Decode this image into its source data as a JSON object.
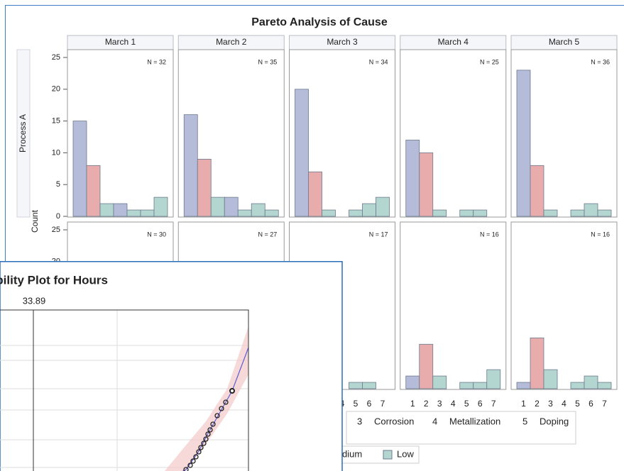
{
  "chart_data": [
    {
      "type": "bar",
      "title": "Pareto Analysis of Cause",
      "ylabel": "Count",
      "columns": [
        "March 1",
        "March 2",
        "March 3",
        "March 4",
        "March 5"
      ],
      "rows": [
        "Process A"
      ],
      "categories": [
        "1",
        "2",
        "3",
        "4",
        "5",
        "6",
        "7"
      ],
      "bar_colors": [
        "#b4bcd9",
        "#e8acac",
        "#b4d6d0",
        "#b4bcd9",
        "#b4d6d0",
        "#b4d6d0",
        "#b4d6d0"
      ],
      "ylim": [
        0,
        25
      ],
      "yticks": [
        0,
        5,
        10,
        15,
        20,
        25
      ],
      "panels": [
        [
          {
            "n_label": "N = 32",
            "values": [
              15,
              8,
              2,
              2,
              1,
              1,
              3
            ]
          },
          {
            "n_label": "N = 35",
            "values": [
              16,
              9,
              3,
              3,
              1,
              2,
              1
            ]
          },
          {
            "n_label": "N = 34",
            "values": [
              20,
              7,
              1,
              0,
              1,
              2,
              3
            ]
          },
          {
            "n_label": "N = 25",
            "values": [
              12,
              10,
              1,
              0,
              1,
              1,
              0
            ]
          },
          {
            "n_label": "N = 36",
            "values": [
              23,
              8,
              1,
              0,
              1,
              2,
              1
            ]
          }
        ],
        [
          {
            "n_label": "N = 30",
            "values": [
              null,
              null,
              null,
              null,
              null,
              null,
              null
            ]
          },
          {
            "n_label": "N = 27",
            "values": [
              null,
              null,
              null,
              null,
              null,
              null,
              null
            ]
          },
          {
            "n_label": "N = 17",
            "values": [
              null,
              null,
              null,
              0,
              1,
              1,
              0
            ]
          },
          {
            "n_label": "N = 16",
            "values": [
              2,
              7,
              2,
              0,
              1,
              1,
              3
            ]
          },
          {
            "n_label": "N = 16",
            "values": [
              1,
              8,
              3,
              0,
              1,
              2,
              1
            ]
          }
        ]
      ],
      "legend_causes": [
        {
          "code": "3",
          "label": "Corrosion"
        },
        {
          "code": "4",
          "label": "Metallization"
        },
        {
          "code": "5",
          "label": "Doping"
        }
      ],
      "legend_severity": [
        {
          "name": "Medium",
          "color": "#e8acac"
        },
        {
          "name": "Low",
          "color": "#b4d6d0"
        }
      ]
    },
    {
      "type": "probability",
      "title": "Probability Plot for Hours",
      "reference_label": 33.89
    }
  ]
}
